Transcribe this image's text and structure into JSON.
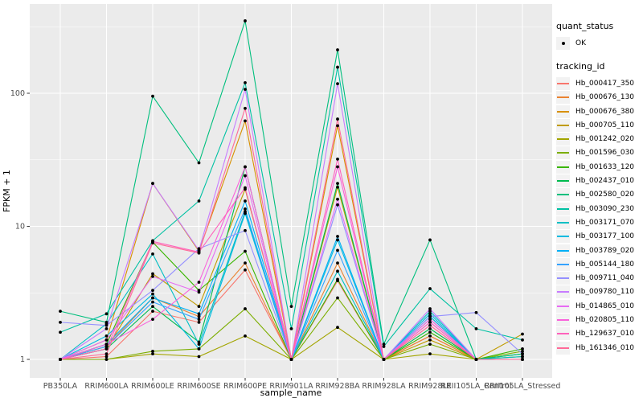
{
  "figure": {
    "background": "#FFFFFF",
    "panel_background": "#EBEBEB",
    "grid_color": "#FFFFFF",
    "point_color": "#000000",
    "axis_text_color": "#4D4D4D",
    "tick_mark_color": "#333333",
    "axis_title_color": "#000000",
    "legend_key_background": "#F2F2F2"
  },
  "legend": {
    "quant_status_title": "quant_status",
    "quant_status_items": [
      {
        "label": "OK",
        "symbol": "black-point"
      }
    ],
    "tracking_id_title": "tracking_id"
  },
  "chart_data": {
    "type": "line",
    "title": "",
    "xlabel": "sample_name",
    "ylabel": "FPKM + 1",
    "y_scale": "log10",
    "y_ticks": [
      1,
      10,
      100
    ],
    "y_minor_ticks": [
      3.162,
      31.62,
      316.2
    ],
    "ylim": [
      0.73,
      470
    ],
    "grid": true,
    "legend_position": "right",
    "point_shape": "filled-circle",
    "categories": [
      "PB350LA",
      "RRIM600LA",
      "RRIM600LE",
      "RRIM600SE",
      "RRIM600PE",
      "RRIM901LA",
      "RRIM928BA",
      "RRIM928LA",
      "RRIM928LE",
      "RRII105LA_Control",
      "RRII105LA_Stressed"
    ],
    "series": [
      {
        "name": "Hb_000417_350",
        "color": "#F8766D",
        "values": [
          1,
          1.05,
          2.3,
          1.9,
          4.7,
          1,
          3.9,
          1,
          1.5,
          1,
          1
        ]
      },
      {
        "name": "Hb_000676_130",
        "color": "#EA8331",
        "values": [
          1,
          1.25,
          2.9,
          2.1,
          5.3,
          1,
          5.3,
          1,
          1.5,
          1,
          1
        ]
      },
      {
        "name": "Hb_000676_380",
        "color": "#D89000",
        "values": [
          1,
          1.4,
          21,
          6.5,
          62,
          1,
          57,
          1,
          2.1,
          1,
          1
        ]
      },
      {
        "name": "Hb_000705_110",
        "color": "#C09B00",
        "values": [
          1,
          1.2,
          4.4,
          2.5,
          19,
          1,
          19.7,
          1,
          1.4,
          1,
          1.55
        ]
      },
      {
        "name": "Hb_001242_020",
        "color": "#A3A500",
        "values": [
          1,
          1,
          1.1,
          1.05,
          1.5,
          1,
          1.74,
          1,
          1.1,
          1,
          1.05
        ]
      },
      {
        "name": "Hb_001596_030",
        "color": "#7CAE00",
        "values": [
          1,
          1,
          1.15,
          1.2,
          2.4,
          1,
          2.9,
          1,
          1.3,
          1,
          1.15
        ]
      },
      {
        "name": "Hb_001633_120",
        "color": "#39B600",
        "values": [
          1,
          1.3,
          7.6,
          3.3,
          6.5,
          1,
          4.0,
          1,
          1.6,
          1,
          1.2
        ]
      },
      {
        "name": "Hb_002437_010",
        "color": "#00BB4E",
        "values": [
          1,
          1.2,
          2.5,
          1.35,
          28,
          1,
          21,
          1,
          1.7,
          1,
          1.1
        ]
      },
      {
        "name": "Hb_002580_020",
        "color": "#00BF7D",
        "values": [
          2.3,
          1.9,
          95,
          30,
          350,
          2.5,
          212,
          1.3,
          7.9,
          1,
          1.1
        ]
      },
      {
        "name": "Hb_003090_230",
        "color": "#00C1A3",
        "values": [
          1.6,
          2.2,
          7.8,
          15.5,
          120,
          1.7,
          157,
          1.25,
          3.4,
          1.7,
          1.4
        ]
      },
      {
        "name": "Hb_003171_070",
        "color": "#00BFC4",
        "values": [
          1,
          1.85,
          6.2,
          1.3,
          12.9,
          1,
          4.6,
          1,
          2.3,
          1,
          1.05
        ]
      },
      {
        "name": "Hb_003177_100",
        "color": "#00BAE0",
        "values": [
          1,
          1.5,
          3.1,
          1.2,
          12.5,
          1,
          7.9,
          1,
          2.2,
          1,
          1
        ]
      },
      {
        "name": "Hb_003789_020",
        "color": "#00B0F6",
        "values": [
          1,
          1.3,
          2.9,
          2.2,
          15.5,
          1,
          8.4,
          1,
          2.1,
          1,
          1
        ]
      },
      {
        "name": "Hb_005144_180",
        "color": "#35A2FF",
        "values": [
          1,
          1.25,
          2.7,
          2.0,
          13.5,
          1,
          6.6,
          1,
          2.0,
          1,
          1
        ]
      },
      {
        "name": "Hb_009711_040",
        "color": "#9590FF",
        "values": [
          1.9,
          1.8,
          3.3,
          6.8,
          9.3,
          1,
          14.5,
          1,
          2.1,
          2.25,
          1.1
        ]
      },
      {
        "name": "Hb_009780_110",
        "color": "#C77CFF",
        "values": [
          1,
          1.7,
          21,
          6.6,
          107,
          1,
          118,
          1,
          2.4,
          1,
          1
        ]
      },
      {
        "name": "Hb_014865_010",
        "color": "#E76BF3",
        "values": [
          1,
          1.4,
          4.2,
          3.2,
          24,
          1,
          16,
          1,
          1.9,
          1,
          1
        ]
      },
      {
        "name": "Hb_020805_110",
        "color": "#FA62DB",
        "values": [
          1,
          1.3,
          2.0,
          3.8,
          28,
          1,
          28,
          1,
          2.0,
          1,
          1
        ]
      },
      {
        "name": "Hb_129637_010",
        "color": "#FF62BC",
        "values": [
          1,
          1.2,
          7.7,
          6.4,
          19.5,
          1,
          32,
          1,
          1.9,
          1,
          1
        ]
      },
      {
        "name": "Hb_161346_010",
        "color": "#FF6A98",
        "values": [
          1,
          1.1,
          7.5,
          6.3,
          77,
          1,
          64,
          1,
          1.8,
          1,
          1
        ]
      }
    ]
  }
}
